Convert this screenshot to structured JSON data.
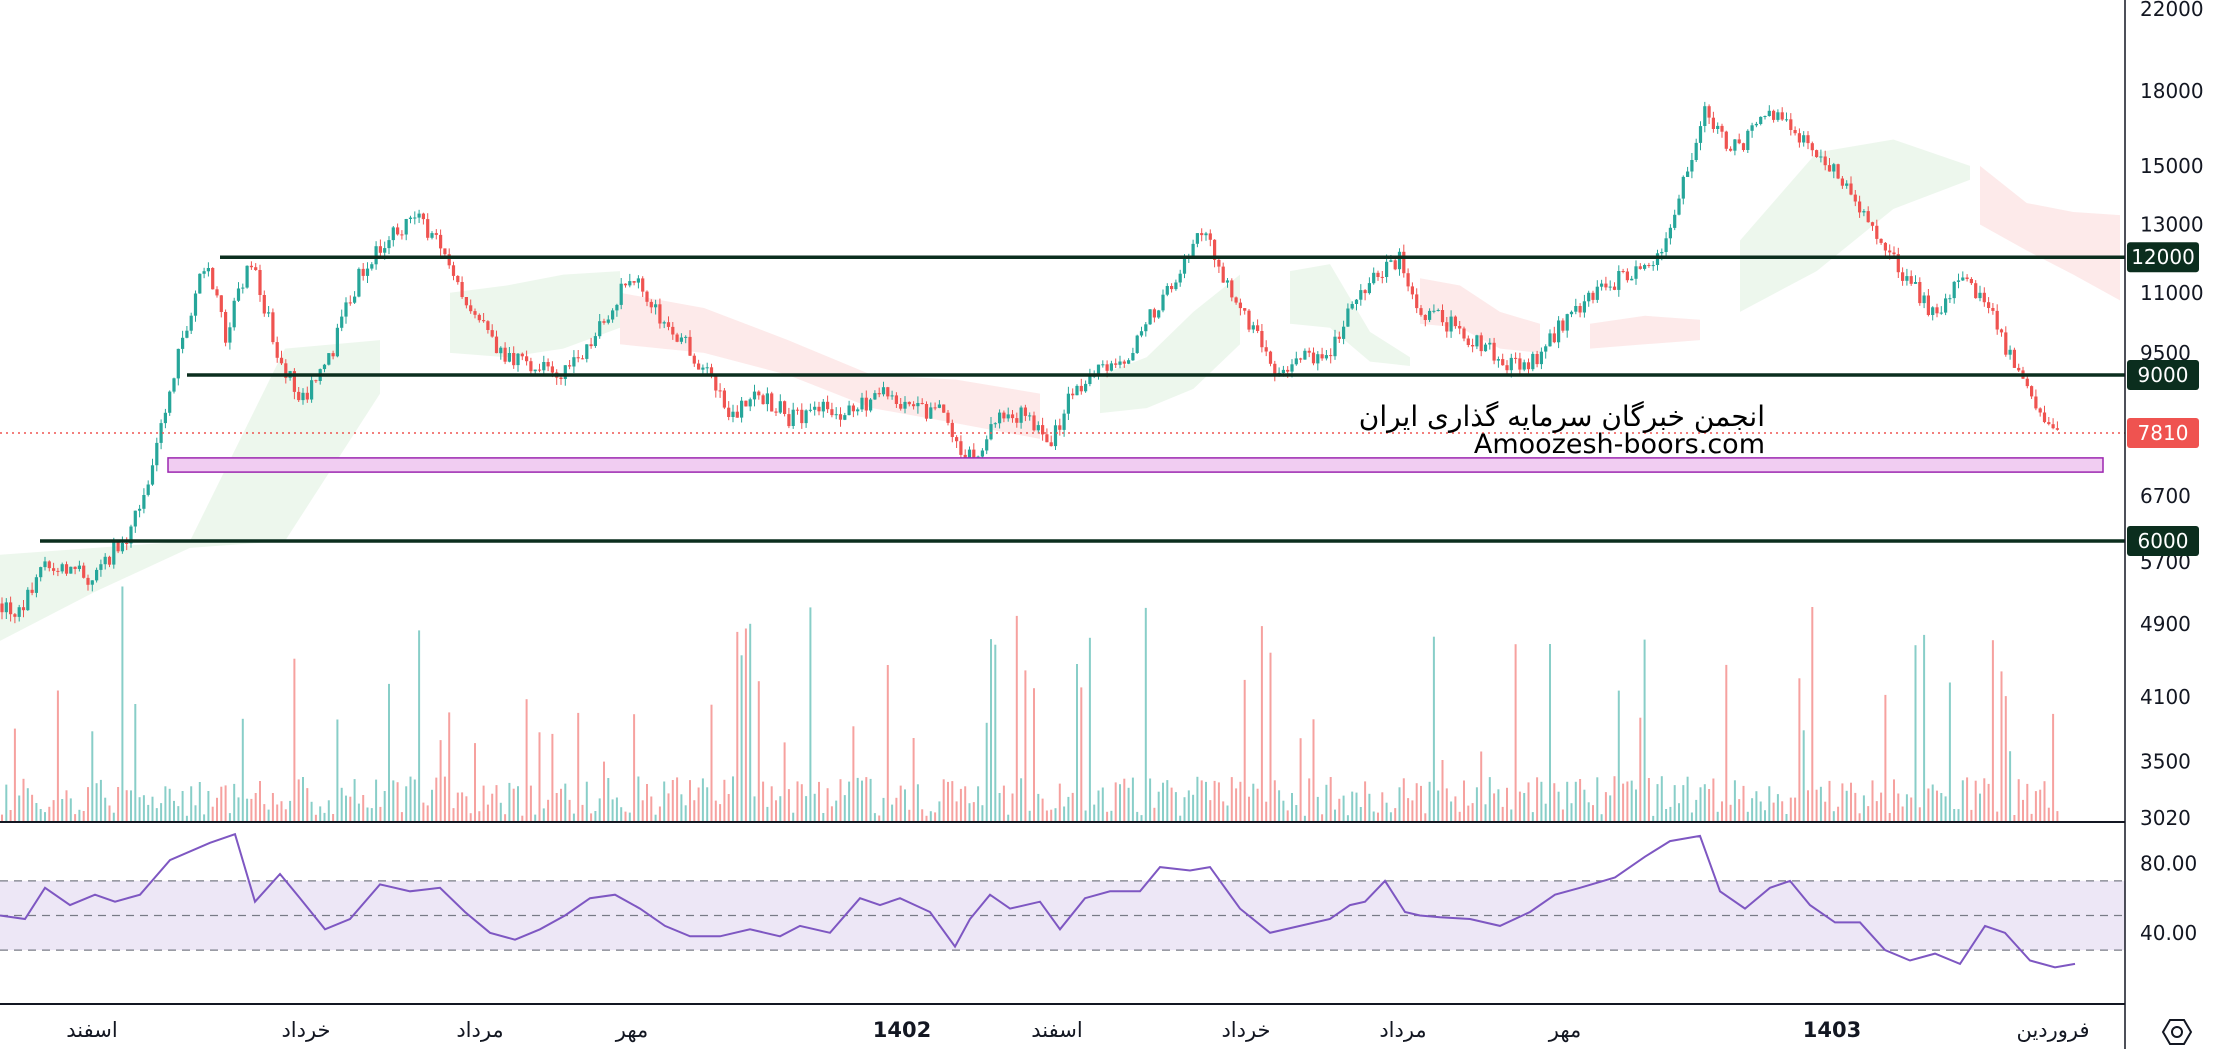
{
  "watermark": {
    "line1": "انجمن خبرگان سرمایه گذاری ایران",
    "line2": "Amoozesh-boors.com"
  },
  "settings_icon": "settings-hexagon-icon",
  "colors": {
    "up": "#26a69a",
    "down": "#ef5350",
    "level_line": "#0b2e1e",
    "zone_fill": "#f1cdf2",
    "zone_stroke": "#9c27b0",
    "rsi_line": "#7e57c2",
    "rsi_band": "#ede7f6",
    "last_price_badge": "#ef5350",
    "level_badge": "#0b2e1e"
  },
  "chart_data": {
    "type": "candlestick",
    "price_axis": {
      "scale": "log",
      "ticks": [
        22000,
        18000,
        15000,
        13000,
        11000,
        9500,
        6700,
        5700,
        4900,
        4100,
        3500,
        3020
      ]
    },
    "time_axis": {
      "labels": [
        "اسفند",
        "خرداد",
        "مرداد",
        "مهر",
        "1402",
        "اسفند",
        "خرداد",
        "مرداد",
        "مهر",
        "1403",
        "فروردین"
      ],
      "bold_labels": [
        "1402",
        "1403"
      ]
    },
    "last_price": 7810,
    "horizontal_levels": [
      12000,
      9000,
      6000
    ],
    "support_zone": [
      7100,
      7350
    ],
    "price_path": [
      [
        0,
        5150
      ],
      [
        20,
        5000
      ],
      [
        45,
        5750
      ],
      [
        65,
        5600
      ],
      [
        90,
        5500
      ],
      [
        110,
        5800
      ],
      [
        130,
        6150
      ],
      [
        155,
        7300
      ],
      [
        180,
        9600
      ],
      [
        205,
        11900
      ],
      [
        225,
        9900
      ],
      [
        250,
        11900
      ],
      [
        275,
        9700
      ],
      [
        300,
        8400
      ],
      [
        330,
        9400
      ],
      [
        360,
        11500
      ],
      [
        390,
        12600
      ],
      [
        420,
        13200
      ],
      [
        445,
        12000
      ],
      [
        470,
        10600
      ],
      [
        500,
        9500
      ],
      [
        530,
        9200
      ],
      [
        560,
        9000
      ],
      [
        585,
        9600
      ],
      [
        605,
        10300
      ],
      [
        630,
        11500
      ],
      [
        655,
        10500
      ],
      [
        680,
        9900
      ],
      [
        705,
        9100
      ],
      [
        730,
        8100
      ],
      [
        760,
        8600
      ],
      [
        790,
        8100
      ],
      [
        820,
        8300
      ],
      [
        850,
        8200
      ],
      [
        880,
        8600
      ],
      [
        910,
        8300
      ],
      [
        940,
        8200
      ],
      [
        965,
        7350
      ],
      [
        985,
        7500
      ],
      [
        1000,
        8300
      ],
      [
        1030,
        8100
      ],
      [
        1050,
        7500
      ],
      [
        1070,
        8600
      ],
      [
        1100,
        9100
      ],
      [
        1130,
        9400
      ],
      [
        1155,
        10600
      ],
      [
        1185,
        11800
      ],
      [
        1205,
        13000
      ],
      [
        1225,
        11300
      ],
      [
        1250,
        10200
      ],
      [
        1275,
        9200
      ],
      [
        1300,
        9300
      ],
      [
        1330,
        9600
      ],
      [
        1355,
        10700
      ],
      [
        1375,
        11500
      ],
      [
        1400,
        12000
      ],
      [
        1420,
        10500
      ],
      [
        1450,
        10200
      ],
      [
        1480,
        9700
      ],
      [
        1505,
        9300
      ],
      [
        1525,
        9100
      ],
      [
        1550,
        9800
      ],
      [
        1570,
        10500
      ],
      [
        1600,
        11000
      ],
      [
        1630,
        11600
      ],
      [
        1660,
        12000
      ],
      [
        1685,
        14500
      ],
      [
        1705,
        17000
      ],
      [
        1730,
        15500
      ],
      [
        1755,
        16300
      ],
      [
        1775,
        17200
      ],
      [
        1800,
        16000
      ],
      [
        1830,
        15000
      ],
      [
        1860,
        13500
      ],
      [
        1885,
        12200
      ],
      [
        1910,
        11300
      ],
      [
        1935,
        10300
      ],
      [
        1960,
        11300
      ],
      [
        1985,
        10700
      ],
      [
        2005,
        9700
      ],
      [
        2030,
        8500
      ],
      [
        2060,
        7810
      ]
    ],
    "rsi": {
      "levels": [
        70,
        50,
        30
      ],
      "ticks": [
        80.0,
        40.0
      ],
      "path": [
        [
          0,
          50
        ],
        [
          25,
          48
        ],
        [
          45,
          66
        ],
        [
          70,
          56
        ],
        [
          95,
          62
        ],
        [
          115,
          58
        ],
        [
          140,
          62
        ],
        [
          170,
          82
        ],
        [
          210,
          92
        ],
        [
          235,
          97
        ],
        [
          255,
          58
        ],
        [
          280,
          74
        ],
        [
          300,
          60
        ],
        [
          325,
          42
        ],
        [
          350,
          48
        ],
        [
          380,
          68
        ],
        [
          410,
          64
        ],
        [
          440,
          66
        ],
        [
          465,
          52
        ],
        [
          490,
          40
        ],
        [
          515,
          36
        ],
        [
          540,
          42
        ],
        [
          565,
          50
        ],
        [
          590,
          60
        ],
        [
          615,
          62
        ],
        [
          640,
          54
        ],
        [
          665,
          44
        ],
        [
          690,
          38
        ],
        [
          720,
          38
        ],
        [
          750,
          42
        ],
        [
          780,
          38
        ],
        [
          800,
          44
        ],
        [
          830,
          40
        ],
        [
          860,
          60
        ],
        [
          880,
          56
        ],
        [
          900,
          60
        ],
        [
          930,
          52
        ],
        [
          955,
          32
        ],
        [
          970,
          48
        ],
        [
          990,
          62
        ],
        [
          1010,
          54
        ],
        [
          1040,
          58
        ],
        [
          1060,
          42
        ],
        [
          1085,
          60
        ],
        [
          1110,
          64
        ],
        [
          1140,
          64
        ],
        [
          1160,
          78
        ],
        [
          1190,
          76
        ],
        [
          1210,
          78
        ],
        [
          1240,
          54
        ],
        [
          1270,
          40
        ],
        [
          1300,
          44
        ],
        [
          1330,
          48
        ],
        [
          1350,
          56
        ],
        [
          1365,
          58
        ],
        [
          1385,
          70
        ],
        [
          1405,
          52
        ],
        [
          1420,
          50
        ],
        [
          1440,
          49
        ],
        [
          1470,
          48
        ],
        [
          1500,
          44
        ],
        [
          1530,
          52
        ],
        [
          1555,
          62
        ],
        [
          1580,
          66
        ],
        [
          1615,
          72
        ],
        [
          1645,
          84
        ],
        [
          1670,
          93
        ],
        [
          1700,
          96
        ],
        [
          1720,
          64
        ],
        [
          1745,
          54
        ],
        [
          1770,
          66
        ],
        [
          1790,
          70
        ],
        [
          1810,
          56
        ],
        [
          1835,
          46
        ],
        [
          1860,
          46
        ],
        [
          1885,
          30
        ],
        [
          1910,
          24
        ],
        [
          1935,
          28
        ],
        [
          1960,
          22
        ],
        [
          1985,
          44
        ],
        [
          2005,
          40
        ],
        [
          2030,
          24
        ],
        [
          2055,
          20
        ],
        [
          2075,
          22
        ]
      ]
    },
    "ichimoku_cloud": [
      {
        "from": 0,
        "to": 380,
        "top": [
          5800,
          5900,
          6000,
          9600,
          9800
        ],
        "bottom": [
          4700,
          5300,
          5900,
          6000,
          8600
        ],
        "bullish": true
      },
      {
        "from": 450,
        "to": 620,
        "top": [
          11000,
          11200,
          11500,
          11600
        ],
        "bottom": [
          9500,
          9400,
          9600,
          10100
        ],
        "bullish": true
      },
      {
        "from": 620,
        "to": 1040,
        "top": [
          11000,
          10600,
          9800,
          9000,
          8900,
          8600
        ],
        "bottom": [
          9700,
          9500,
          9000,
          8300,
          8000,
          7700
        ],
        "bullish": false
      },
      {
        "from": 1100,
        "to": 1240,
        "top": [
          9000,
          9400,
          10500,
          11500
        ],
        "bottom": [
          8200,
          8300,
          8700,
          9700
        ],
        "bullish": true
      },
      {
        "from": 1290,
        "to": 1410,
        "top": [
          11600,
          11800,
          10000,
          9400
        ],
        "bottom": [
          10200,
          10100,
          9300,
          9200
        ],
        "bullish": true
      },
      {
        "from": 1420,
        "to": 1540,
        "top": [
          11400,
          11200,
          10500,
          10200
        ],
        "bottom": [
          10200,
          10100,
          9600,
          9500
        ],
        "bullish": false
      },
      {
        "from": 1590,
        "to": 1700,
        "top": [
          10200,
          10400,
          10300
        ],
        "bottom": [
          9600,
          9700,
          9800
        ],
        "bullish": false
      },
      {
        "from": 1740,
        "to": 1970,
        "top": [
          12500,
          15500,
          16000,
          15000
        ],
        "bottom": [
          10500,
          11600,
          13500,
          14500
        ],
        "bullish": true
      },
      {
        "from": 1980,
        "to": 2120,
        "top": [
          15000,
          13700,
          13400,
          13300
        ],
        "bottom": [
          13000,
          12200,
          11500,
          10800
        ],
        "bullish": false
      }
    ]
  }
}
